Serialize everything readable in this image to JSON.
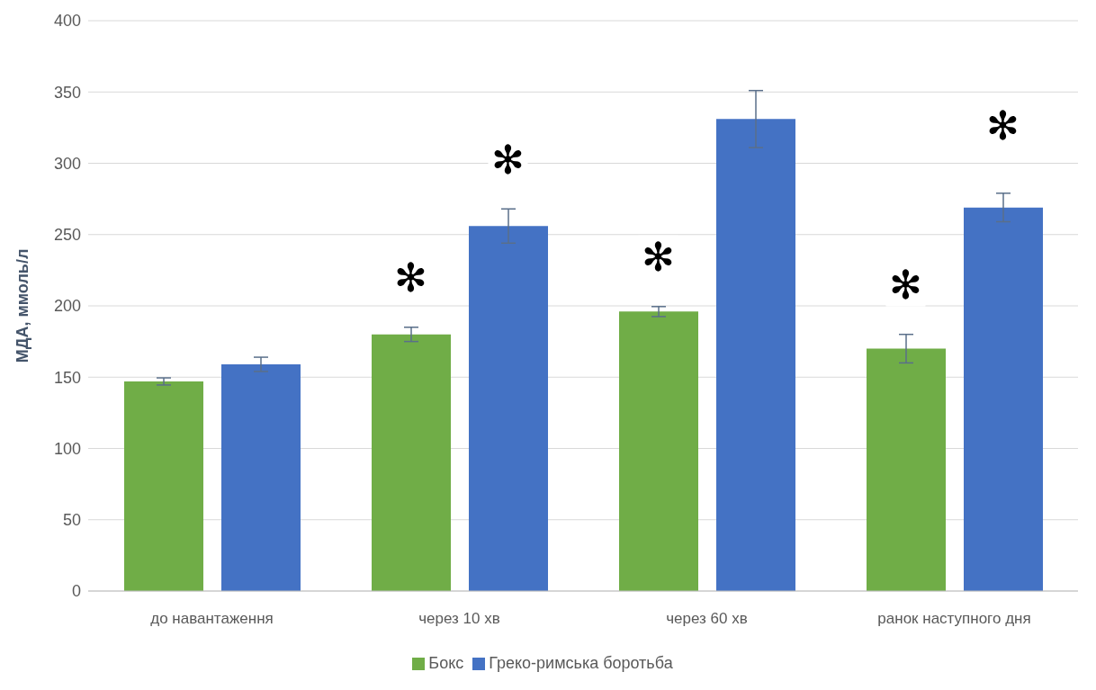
{
  "chart_data": {
    "type": "bar",
    "ylabel": "МДА, ммоль/л",
    "categories": [
      "до навантаження",
      "через 10 хв",
      "через 60 хв",
      "ранок наступного дня"
    ],
    "series": [
      {
        "name": "Бокс",
        "color": "#70ad47",
        "values": [
          147,
          180,
          196,
          170
        ],
        "errors": [
          2.5,
          5,
          3.5,
          10
        ]
      },
      {
        "name": "Греко-римська боротьба",
        "color": "#4472c4",
        "values": [
          159,
          256,
          331,
          269
        ],
        "errors": [
          5,
          12,
          20,
          10
        ]
      }
    ],
    "ylim": [
      0,
      400
    ],
    "yticks": [
      0,
      50,
      100,
      150,
      200,
      250,
      300,
      350,
      400
    ],
    "grid": "y",
    "legend": "bottom",
    "annotations": [
      "✻",
      "✻",
      "✻",
      "✻",
      "✻"
    ]
  }
}
